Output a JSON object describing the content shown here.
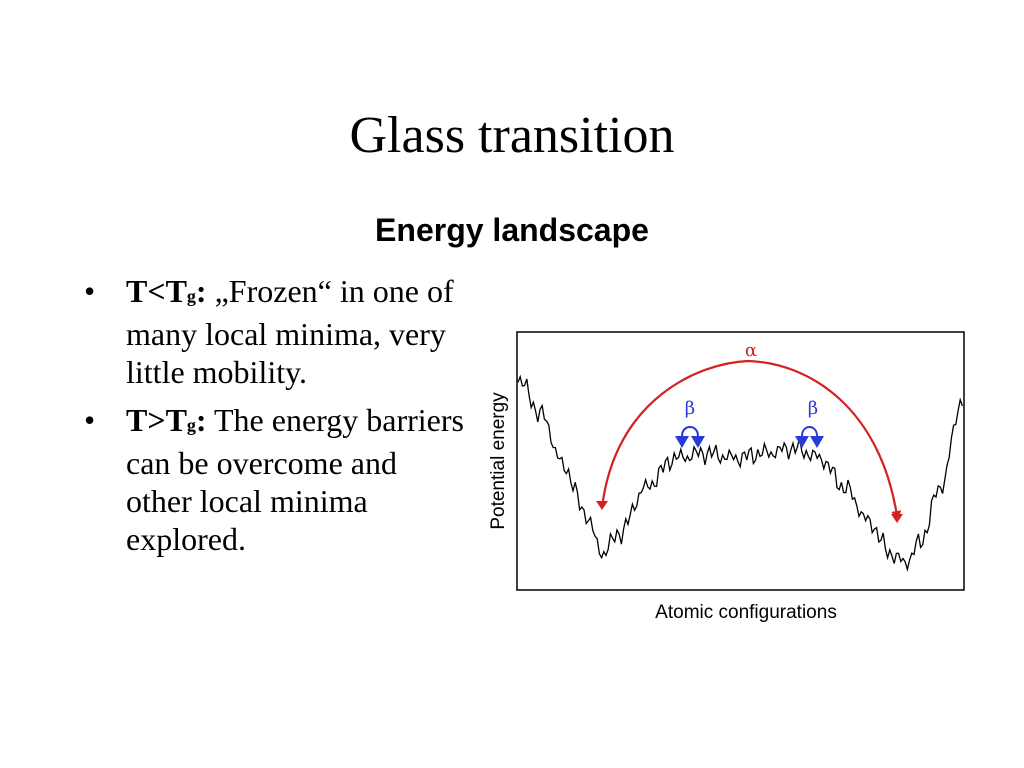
{
  "slide": {
    "title": "Glass transition",
    "subtitle": "Energy landscape"
  },
  "bullets": [
    {
      "bullet": "•",
      "cond_main": "T<T",
      "cond_sub": "g",
      "cond_colon": ":",
      "text": " „Frozen“ in one of many local minima, very little mobility."
    },
    {
      "bullet": "•",
      "cond_main": "T>T",
      "cond_sub": "g",
      "cond_colon": ":",
      "text": " The energy barriers can be overcome and other local minima explored."
    }
  ],
  "diagram": {
    "ylabel": "Potential energy",
    "xlabel": "Atomic configurations",
    "alpha_label": "α",
    "beta_label_left": "β",
    "beta_label_right": "β",
    "colors": {
      "curve": "#000000",
      "alpha_arrow": "#d42020",
      "beta_arrow": "#2a3ad6",
      "frame": "#000000"
    }
  }
}
